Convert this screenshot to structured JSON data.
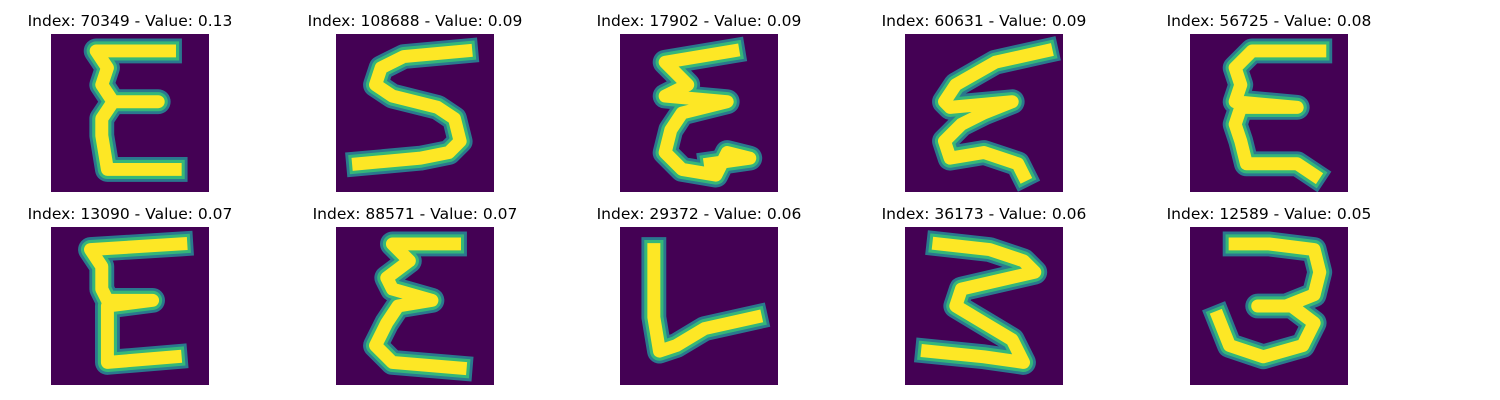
{
  "colors": {
    "background": "#440154",
    "stroke_core": "#fde725",
    "stroke_edge": "#35b779",
    "stroke_halo": "#2a788e"
  },
  "panels": [
    {
      "index": "70349",
      "value": "0.13",
      "title": "Index: 70349 - Value: 0.13",
      "glyph": "E"
    },
    {
      "index": "108688",
      "value": "0.09",
      "title": "Index: 108688 - Value: 0.09",
      "glyph": "S"
    },
    {
      "index": "17902",
      "value": "0.09",
      "title": "Index: 17902 - Value: 0.09",
      "glyph": "E"
    },
    {
      "index": "60631",
      "value": "0.09",
      "title": "Index: 60631 - Value: 0.09",
      "glyph": "E"
    },
    {
      "index": "56725",
      "value": "0.08",
      "title": "Index: 56725 - Value: 0.08",
      "glyph": "E"
    },
    {
      "index": "13090",
      "value": "0.07",
      "title": "Index: 13090 - Value: 0.07",
      "glyph": "E"
    },
    {
      "index": "88571",
      "value": "0.07",
      "title": "Index: 88571 - Value: 0.07",
      "glyph": "E"
    },
    {
      "index": "29372",
      "value": "0.06",
      "title": "Index: 29372 - Value: 0.06",
      "glyph": "L"
    },
    {
      "index": "36173",
      "value": "0.06",
      "title": "Index: 36173 - Value: 0.06",
      "glyph": "3"
    },
    {
      "index": "12589",
      "value": "0.05",
      "title": "Index: 12589 - Value: 0.05",
      "glyph": "3"
    }
  ]
}
